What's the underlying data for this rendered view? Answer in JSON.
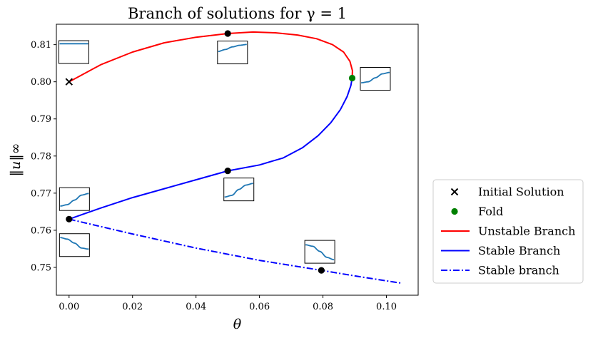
{
  "chart_data": {
    "type": "line",
    "title": "Branch of solutions for γ = 1",
    "xlabel": "θ",
    "ylabel": "‖u‖∞",
    "xlim": [
      -0.004,
      0.11
    ],
    "ylim": [
      0.7425,
      0.8155
    ],
    "xticks": [
      0.0,
      0.02,
      0.04,
      0.06,
      0.08,
      0.1
    ],
    "xtick_labels": [
      "0.00",
      "0.02",
      "0.04",
      "0.06",
      "0.08",
      "0.10"
    ],
    "yticks": [
      0.75,
      0.76,
      0.77,
      0.78,
      0.79,
      0.8,
      0.81
    ],
    "ytick_labels": [
      "0.75",
      "0.76",
      "0.77",
      "0.78",
      "0.79",
      "0.80",
      "0.81"
    ],
    "grid": false,
    "legend_position": "outside-right-bottom",
    "colors": {
      "unstable": "#ff0000",
      "stable": "#0000ff",
      "fold": "#008000",
      "point": "#000000",
      "inset_curve": "#1f77b4"
    },
    "series": [
      {
        "name": "Unstable Branch",
        "style": "solid",
        "color": "#ff0000",
        "points": [
          [
            0.0,
            0.8
          ],
          [
            0.01,
            0.8046
          ],
          [
            0.02,
            0.808
          ],
          [
            0.03,
            0.8105
          ],
          [
            0.04,
            0.812
          ],
          [
            0.05,
            0.813
          ],
          [
            0.058,
            0.8134
          ],
          [
            0.065,
            0.8132
          ],
          [
            0.072,
            0.8126
          ],
          [
            0.078,
            0.8116
          ],
          [
            0.083,
            0.81
          ],
          [
            0.0865,
            0.808
          ],
          [
            0.0885,
            0.8055
          ],
          [
            0.0893,
            0.803
          ],
          [
            0.0892,
            0.801
          ]
        ]
      },
      {
        "name": "Stable Branch",
        "style": "solid",
        "color": "#0000ff",
        "points": [
          [
            0.0892,
            0.801
          ],
          [
            0.0888,
            0.799
          ],
          [
            0.0876,
            0.796
          ],
          [
            0.0855,
            0.7925
          ],
          [
            0.0825,
            0.789
          ],
          [
            0.0785,
            0.7855
          ],
          [
            0.0735,
            0.7822
          ],
          [
            0.0675,
            0.7795
          ],
          [
            0.06,
            0.7776
          ],
          [
            0.05,
            0.776
          ],
          [
            0.04,
            0.7736
          ],
          [
            0.03,
            0.7712
          ],
          [
            0.02,
            0.7688
          ],
          [
            0.01,
            0.766
          ],
          [
            0.0,
            0.763
          ]
        ]
      },
      {
        "name": "Stable branch",
        "style": "dashdot",
        "color": "#0000ff",
        "points": [
          [
            0.0,
            0.763
          ],
          [
            0.02,
            0.759
          ],
          [
            0.04,
            0.7552
          ],
          [
            0.06,
            0.7519
          ],
          [
            0.0795,
            0.7492
          ],
          [
            0.09,
            0.7477
          ],
          [
            0.105,
            0.7457
          ]
        ]
      }
    ],
    "markers": [
      {
        "name": "Initial Solution",
        "shape": "x",
        "color": "#000000",
        "x": 0.0,
        "y": 0.8
      },
      {
        "name": "Fold",
        "shape": "circle",
        "color": "#008000",
        "x": 0.0892,
        "y": 0.801
      },
      {
        "shape": "circle",
        "color": "#000000",
        "x": 0.05,
        "y": 0.813
      },
      {
        "shape": "circle",
        "color": "#000000",
        "x": 0.05,
        "y": 0.776
      },
      {
        "shape": "circle",
        "color": "#000000",
        "x": 0.0,
        "y": 0.763
      },
      {
        "shape": "circle",
        "color": "#000000",
        "x": 0.0795,
        "y": 0.7492
      }
    ],
    "insets": [
      {
        "at": [
          0.0015,
          0.808
        ],
        "profile": [
          0.92,
          0.92,
          0.92,
          0.92,
          0.92
        ]
      },
      {
        "at": [
          0.0515,
          0.8079
        ],
        "profile": [
          0.55,
          0.65,
          0.78,
          0.86,
          0.9
        ]
      },
      {
        "at": [
          0.0965,
          0.8008
        ],
        "profile": [
          0.3,
          0.35,
          0.55,
          0.75,
          0.82
        ]
      },
      {
        "at": [
          0.0017,
          0.7684
        ],
        "profile": [
          0.15,
          0.22,
          0.45,
          0.7,
          0.78
        ]
      },
      {
        "at": [
          0.0535,
          0.771
        ],
        "profile": [
          0.12,
          0.2,
          0.5,
          0.72,
          0.8
        ]
      },
      {
        "at": [
          0.0017,
          0.756
        ],
        "profile": [
          0.88,
          0.8,
          0.6,
          0.35,
          0.3
        ]
      },
      {
        "at": [
          0.079,
          0.7542
        ],
        "profile": [
          0.85,
          0.78,
          0.52,
          0.22,
          0.1
        ]
      }
    ],
    "legend": [
      {
        "label": "Initial Solution",
        "kind": "marker-x",
        "color": "#000000"
      },
      {
        "label": "Fold",
        "kind": "marker-circle",
        "color": "#008000"
      },
      {
        "label": "Unstable Branch",
        "kind": "line-solid",
        "color": "#ff0000"
      },
      {
        "label": "Stable Branch",
        "kind": "line-solid",
        "color": "#0000ff"
      },
      {
        "label": "Stable branch",
        "kind": "line-dashdot",
        "color": "#0000ff"
      }
    ]
  }
}
